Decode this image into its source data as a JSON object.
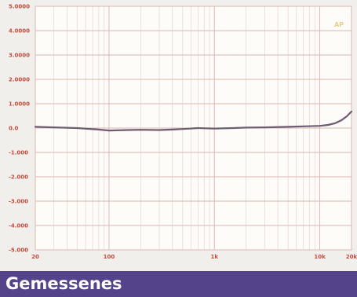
{
  "caption": "Gemessenes",
  "colors": {
    "panel_background": "#f1efec",
    "plot_background": "#fdfcf9",
    "grid_major": "#dbb6b0",
    "grid_minor": "#e7d3cf",
    "tick_label": "#c84b3c",
    "curve": "#6e5c70",
    "caption_background": "#54428a",
    "caption_text": "#ffffff"
  },
  "chart_data": {
    "type": "line",
    "title": "",
    "xlabel": "",
    "ylabel": "",
    "x_scale": "log",
    "xlim": [
      20,
      20000
    ],
    "ylim": [
      -5,
      5
    ],
    "grid": true,
    "x_ticks": [
      {
        "value": 20,
        "label": "20"
      },
      {
        "value": 100,
        "label": "100"
      },
      {
        "value": 1000,
        "label": "1k"
      },
      {
        "value": 10000,
        "label": "10k"
      },
      {
        "value": 20000,
        "label": "20k"
      }
    ],
    "y_ticks": [
      {
        "value": 5,
        "label": "5.0000"
      },
      {
        "value": 4,
        "label": "4.0000"
      },
      {
        "value": 3,
        "label": "3.0000"
      },
      {
        "value": 2,
        "label": "2.0000"
      },
      {
        "value": 1,
        "label": "1.0000"
      },
      {
        "value": 0,
        "label": "0.0"
      },
      {
        "value": -1,
        "label": "-1.000"
      },
      {
        "value": -2,
        "label": "-2.000"
      },
      {
        "value": -3,
        "label": "-3.000"
      },
      {
        "value": -4,
        "label": "-4.000"
      },
      {
        "value": -5,
        "label": "-5.000"
      }
    ],
    "corner_badge": "AP",
    "series": [
      {
        "color": "#6e5c70",
        "points": [
          [
            20,
            0.05
          ],
          [
            30,
            0.03
          ],
          [
            50,
            0.0
          ],
          [
            80,
            -0.06
          ],
          [
            100,
            -0.1
          ],
          [
            150,
            -0.08
          ],
          [
            200,
            -0.07
          ],
          [
            300,
            -0.08
          ],
          [
            400,
            -0.06
          ],
          [
            500,
            -0.04
          ],
          [
            700,
            0.0
          ],
          [
            1000,
            -0.02
          ],
          [
            1500,
            0.0
          ],
          [
            2000,
            0.02
          ],
          [
            3000,
            0.03
          ],
          [
            5000,
            0.05
          ],
          [
            7000,
            0.07
          ],
          [
            10000,
            0.09
          ],
          [
            12000,
            0.13
          ],
          [
            14000,
            0.2
          ],
          [
            16000,
            0.32
          ],
          [
            18000,
            0.48
          ],
          [
            20000,
            0.68
          ]
        ]
      }
    ]
  }
}
